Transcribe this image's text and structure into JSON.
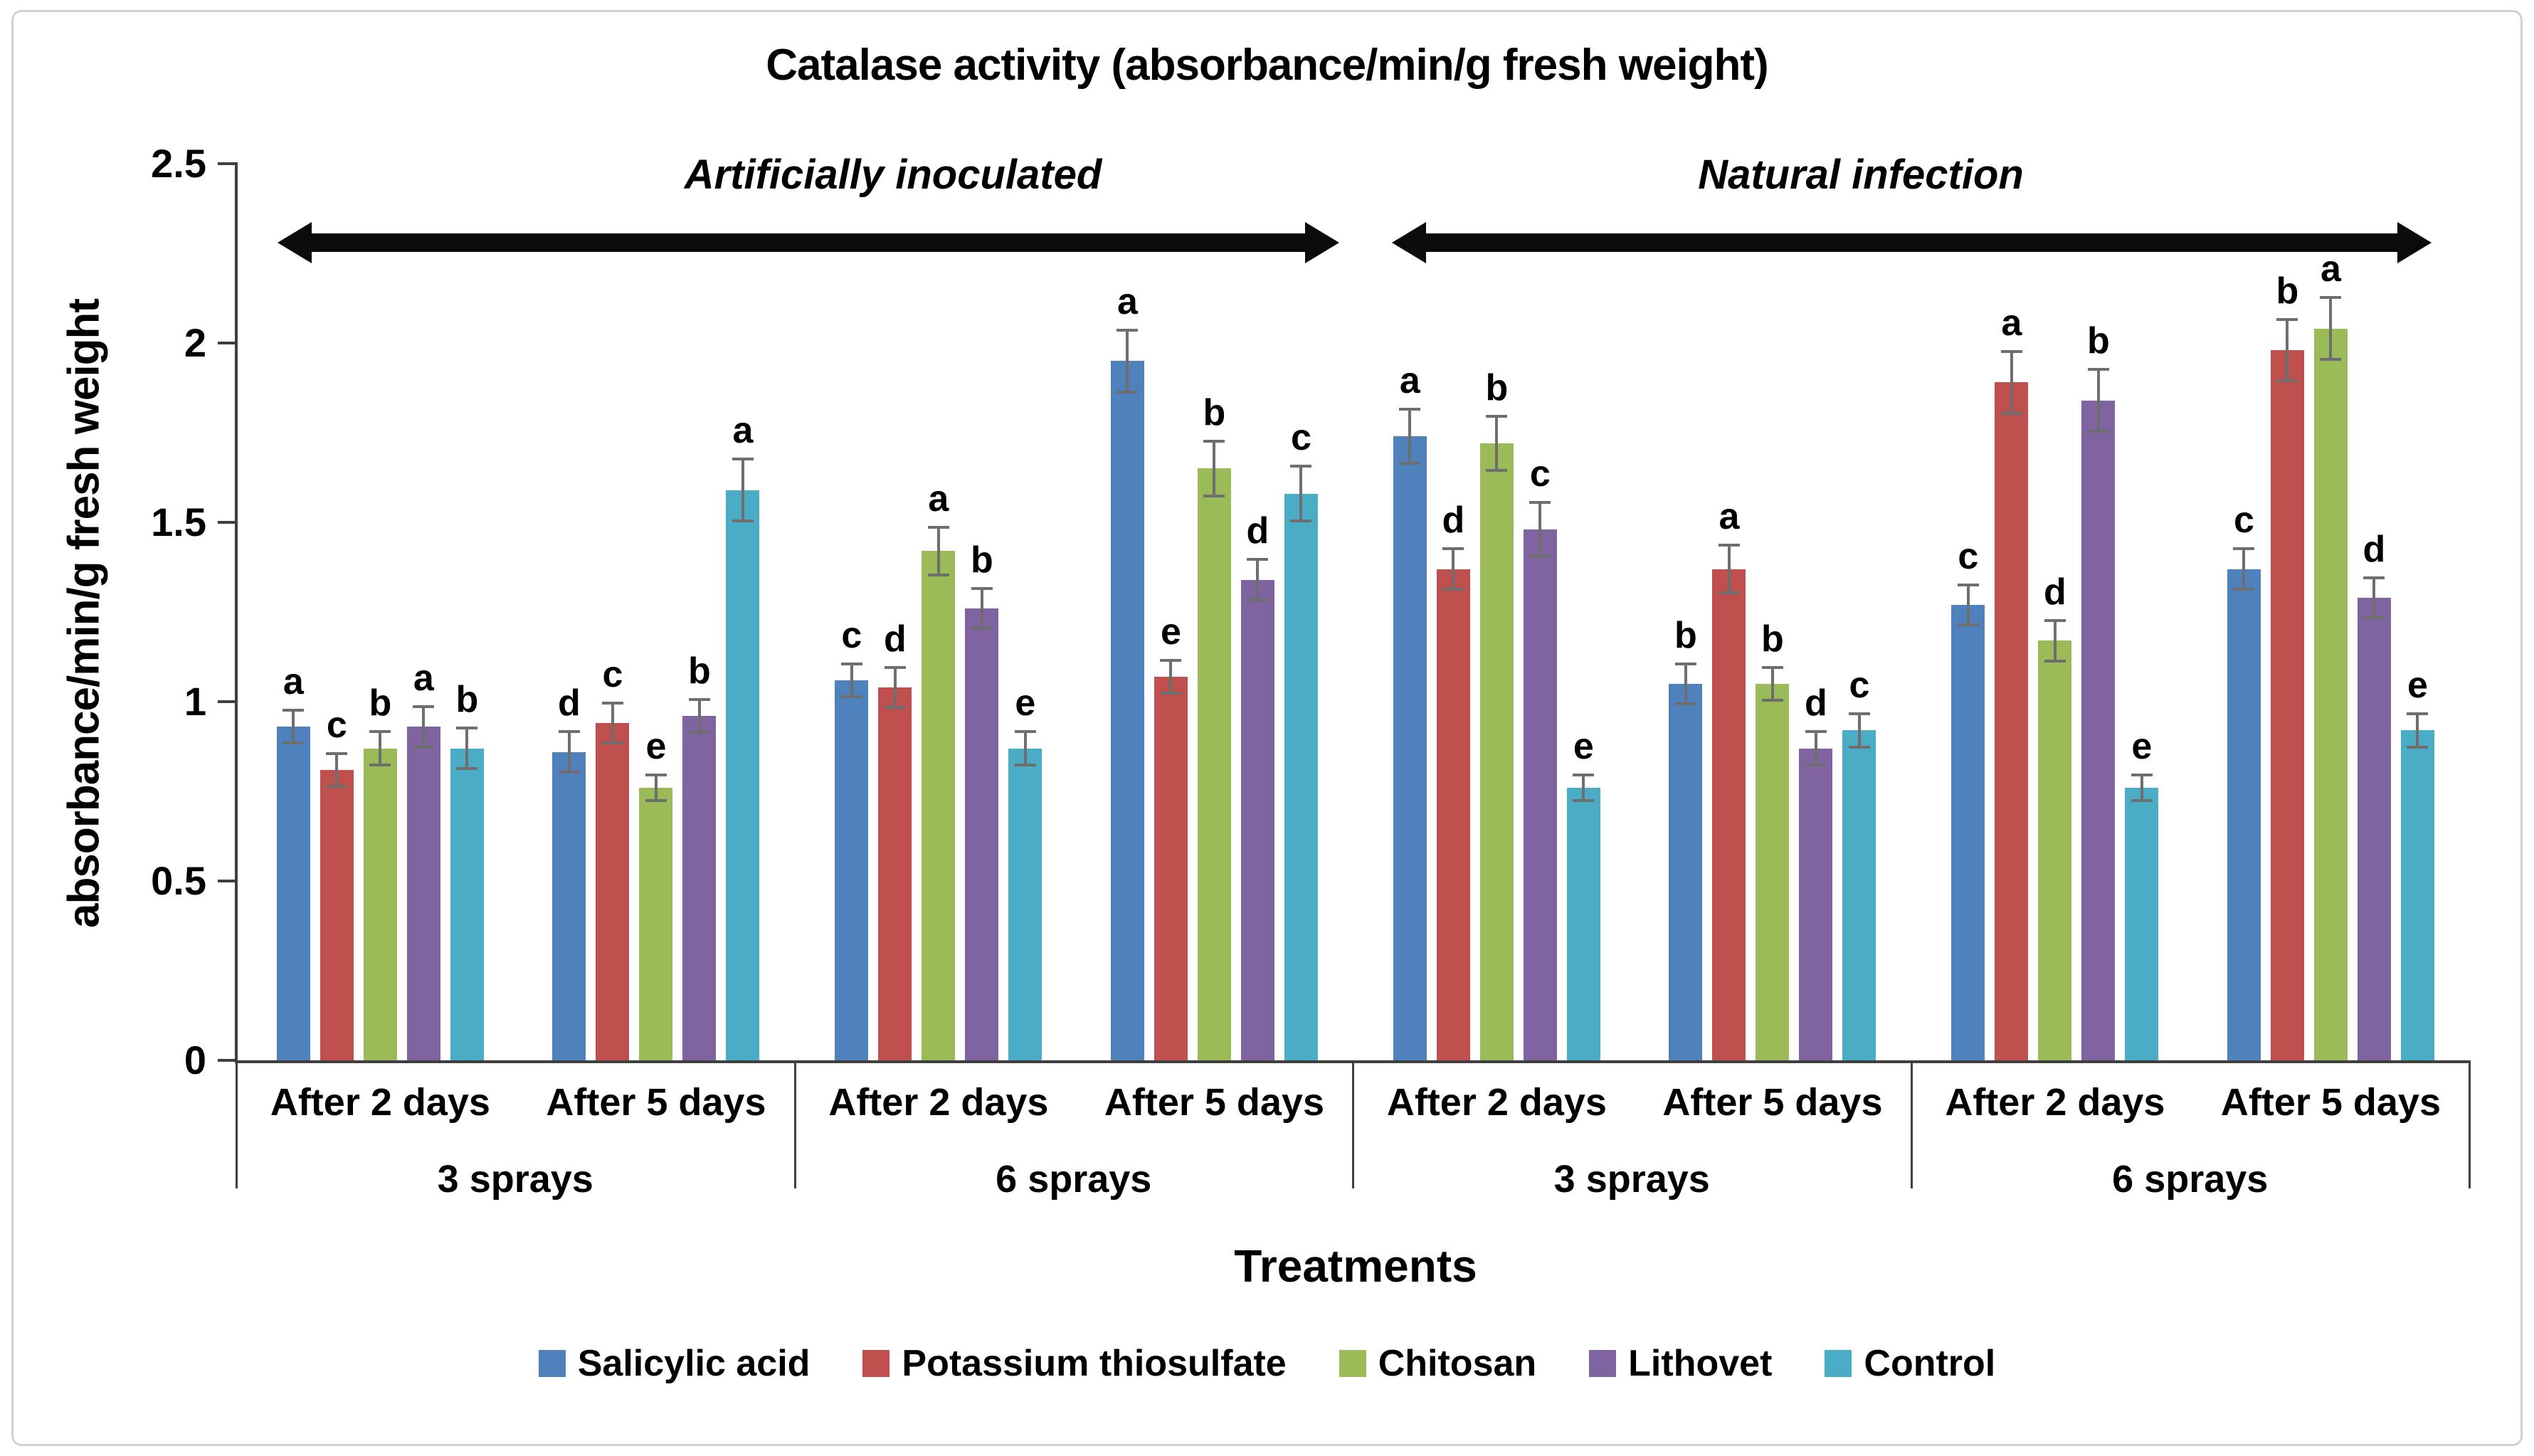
{
  "chart_data": {
    "type": "bar",
    "title": "Catalase activity (absorbance/min/g fresh weight)",
    "ylabel": "absorbance/min/g fresh weight",
    "xlabel": "Treatments",
    "ylim": [
      0,
      2.5
    ],
    "yticks": [
      "0",
      "0.5",
      "1",
      "1.5",
      "2",
      "2.5"
    ],
    "grid": "off",
    "legend_position": "bottom",
    "section_headers": {
      "artificial": "Artificially inoculated",
      "natural": "Natural infection"
    },
    "series": [
      {
        "name": "Salicylic acid",
        "color": "#4F81BD"
      },
      {
        "name": "Potassium thiosulfate",
        "color": "#C0504D"
      },
      {
        "name": "Chitosan",
        "color": "#9BBB59"
      },
      {
        "name": "Lithovet",
        "color": "#8064A2"
      },
      {
        "name": "Control",
        "color": "#4BACC6"
      }
    ],
    "error_bar_color": "#6e6e6e",
    "groups": [
      {
        "condition": "Artificially inoculated",
        "spray": "3 sprays",
        "time": "After 2 days",
        "values": [
          0.93,
          0.81,
          0.87,
          0.93,
          0.87
        ],
        "errors": [
          0.05,
          0.05,
          0.05,
          0.06,
          0.06
        ],
        "letters": [
          "a",
          "c",
          "b",
          "a",
          "b"
        ]
      },
      {
        "condition": "Artificially inoculated",
        "spray": "3 sprays",
        "time": "After 5 days",
        "values": [
          0.86,
          0.94,
          0.76,
          0.96,
          1.59
        ],
        "errors": [
          0.06,
          0.06,
          0.04,
          0.05,
          0.09
        ],
        "letters": [
          "d",
          "c",
          "e",
          "b",
          "a"
        ]
      },
      {
        "condition": "Artificially inoculated",
        "spray": "6 sprays",
        "time": "After 2 days",
        "values": [
          1.06,
          1.04,
          1.42,
          1.26,
          0.87
        ],
        "errors": [
          0.05,
          0.06,
          0.07,
          0.06,
          0.05
        ],
        "letters": [
          "c",
          "d",
          "a",
          "b",
          "e"
        ]
      },
      {
        "condition": "Artificially inoculated",
        "spray": "6 sprays",
        "time": "After 5 days",
        "values": [
          1.95,
          1.07,
          1.65,
          1.34,
          1.58
        ],
        "errors": [
          0.09,
          0.05,
          0.08,
          0.06,
          0.08
        ],
        "letters": [
          "a",
          "e",
          "b",
          "d",
          "c"
        ]
      },
      {
        "condition": "Natural infection",
        "spray": "3 sprays",
        "time": "After 2 days",
        "values": [
          1.74,
          1.37,
          1.72,
          1.48,
          0.76
        ],
        "errors": [
          0.08,
          0.06,
          0.08,
          0.08,
          0.04
        ],
        "letters": [
          "a",
          "d",
          "b",
          "c",
          "e"
        ]
      },
      {
        "condition": "Natural infection",
        "spray": "3 sprays",
        "time": "After 5 days",
        "values": [
          1.05,
          1.37,
          1.05,
          0.87,
          0.92
        ],
        "errors": [
          0.06,
          0.07,
          0.05,
          0.05,
          0.05
        ],
        "letters": [
          "b",
          "a",
          "b",
          "d",
          "c"
        ]
      },
      {
        "condition": "Natural infection",
        "spray": "6 sprays",
        "time": "After 2 days",
        "values": [
          1.27,
          1.89,
          1.17,
          1.84,
          0.76
        ],
        "errors": [
          0.06,
          0.09,
          0.06,
          0.09,
          0.04
        ],
        "letters": [
          "c",
          "a",
          "d",
          "b",
          "e"
        ]
      },
      {
        "condition": "Natural infection",
        "spray": "6 sprays",
        "time": "After 5 days",
        "values": [
          1.37,
          1.98,
          2.04,
          1.29,
          0.92
        ],
        "errors": [
          0.06,
          0.09,
          0.09,
          0.06,
          0.05
        ],
        "letters": [
          "c",
          "b",
          "a",
          "d",
          "e"
        ]
      }
    ]
  }
}
